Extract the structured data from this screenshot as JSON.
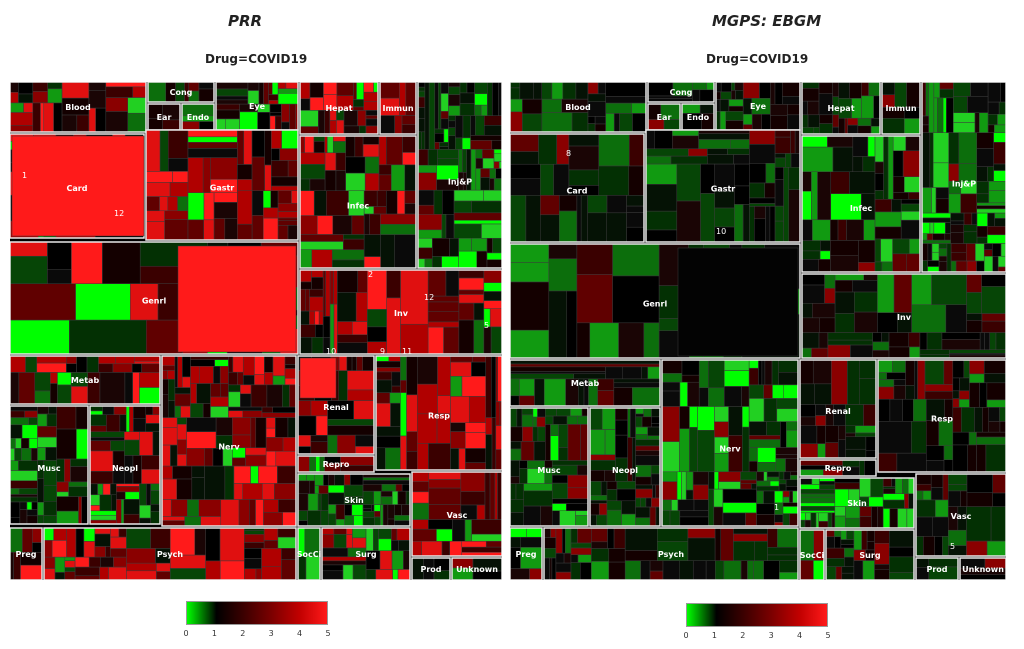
{
  "panels": [
    {
      "title": "PRR",
      "subtitle": "Drug=COVID19"
    },
    {
      "title": "MGPS: EBGM",
      "subtitle": "Drug=COVID19"
    }
  ],
  "chart_data": [
    {
      "type": "heatmap",
      "title": "PRR",
      "subtitle": "Drug=COVID19",
      "color_scale": {
        "ticks": [
          0,
          1,
          2,
          3,
          4,
          5
        ],
        "colors": [
          "#00ff00",
          "#000000",
          "#ff0000"
        ]
      },
      "groups": [
        "Blood",
        "Cong",
        "Ear",
        "Endo",
        "Eye",
        "Hepat",
        "Immun",
        "Card",
        "Gastr",
        "Infec",
        "Inj&P",
        "Genrl",
        "Inv",
        "Metab",
        "Renal",
        "Resp",
        "Musc",
        "Neopl",
        "Nerv",
        "Repro",
        "Skin",
        "Vasc",
        "Preg",
        "Psych",
        "SocCi",
        "Surg",
        "Prod",
        "Unknown"
      ],
      "annotations": [
        "1",
        "12",
        "2",
        "12",
        "5",
        "10",
        "9",
        "11"
      ]
    },
    {
      "type": "heatmap",
      "title": "MGPS: EBGM",
      "subtitle": "Drug=COVID19",
      "color_scale": {
        "ticks": [
          0,
          1,
          2,
          3,
          4,
          5
        ],
        "colors": [
          "#00ff00",
          "#000000",
          "#ff0000"
        ]
      },
      "groups": [
        "Blood",
        "Cong",
        "Ear",
        "Endo",
        "Eye",
        "Hepat",
        "Immun",
        "Card",
        "Gastr",
        "Infec",
        "Inj&P",
        "Genrl",
        "Inv",
        "Metab",
        "Renal",
        "Resp",
        "Musc",
        "Neopl",
        "Nerv",
        "Repro",
        "Skin",
        "Vasc",
        "Preg",
        "Psych",
        "SocCi",
        "Surg",
        "Prod",
        "Unknown"
      ],
      "annotations": [
        "8",
        "10",
        "1",
        "5"
      ]
    }
  ]
}
